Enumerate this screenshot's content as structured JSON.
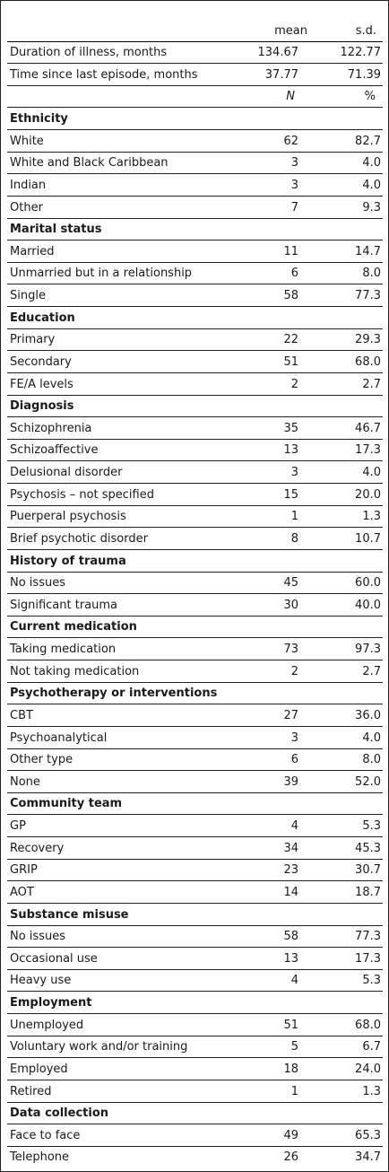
{
  "header": {
    "label": "",
    "col1": "mean",
    "col2": "s.d."
  },
  "continuous": [
    {
      "label": "Duration of illness, months",
      "v1": "134.67",
      "v2": "122.77"
    },
    {
      "label": "Time since last episode, months",
      "v1": "37.77",
      "v2": "71.39"
    }
  ],
  "subheader": {
    "label": "",
    "col1": "N",
    "col2": "%"
  },
  "sections": [
    {
      "title": "Ethnicity",
      "rows": [
        {
          "label": "White",
          "v1": "62",
          "v2": "82.7"
        },
        {
          "label": "White and Black Caribbean",
          "v1": "3",
          "v2": "4.0"
        },
        {
          "label": "Indian",
          "v1": "3",
          "v2": "4.0"
        },
        {
          "label": "Other",
          "v1": "7",
          "v2": "9.3"
        }
      ]
    },
    {
      "title": "Marital status",
      "rows": [
        {
          "label": "Married",
          "v1": "11",
          "v2": "14.7"
        },
        {
          "label": "Unmarried but in a relationship",
          "v1": "6",
          "v2": "8.0"
        },
        {
          "label": "Single",
          "v1": "58",
          "v2": "77.3"
        }
      ]
    },
    {
      "title": "Education",
      "rows": [
        {
          "label": "Primary",
          "v1": "22",
          "v2": "29.3"
        },
        {
          "label": "Secondary",
          "v1": "51",
          "v2": "68.0"
        },
        {
          "label": "FE/A levels",
          "v1": "2",
          "v2": "2.7"
        }
      ]
    },
    {
      "title": "Diagnosis",
      "rows": [
        {
          "label": "Schizophrenia",
          "v1": "35",
          "v2": "46.7"
        },
        {
          "label": "Schizoaffective",
          "v1": "13",
          "v2": "17.3"
        },
        {
          "label": "Delusional disorder",
          "v1": "3",
          "v2": "4.0"
        },
        {
          "label": "Psychosis – not specified",
          "v1": "15",
          "v2": "20.0"
        },
        {
          "label": "Puerperal psychosis",
          "v1": "1",
          "v2": "1.3"
        },
        {
          "label": "Brief psychotic disorder",
          "v1": "8",
          "v2": "10.7"
        }
      ]
    },
    {
      "title": "History of trauma",
      "rows": [
        {
          "label": "No issues",
          "v1": "45",
          "v2": "60.0"
        },
        {
          "label": "Significant trauma",
          "v1": "30",
          "v2": "40.0"
        }
      ]
    },
    {
      "title": "Current medication",
      "rows": [
        {
          "label": "Taking medication",
          "v1": "73",
          "v2": "97.3"
        },
        {
          "label": "Not taking medication",
          "v1": "2",
          "v2": "2.7"
        }
      ]
    },
    {
      "title": "Psychotherapy or interventions",
      "rows": [
        {
          "label": "CBT",
          "v1": "27",
          "v2": "36.0"
        },
        {
          "label": "Psychoanalytical",
          "v1": "3",
          "v2": "4.0"
        },
        {
          "label": "Other type",
          "v1": "6",
          "v2": "8.0"
        },
        {
          "label": "None",
          "v1": "39",
          "v2": "52.0"
        }
      ]
    },
    {
      "title": "Community team",
      "rows": [
        {
          "label": "GP",
          "v1": "4",
          "v2": "5.3"
        },
        {
          "label": "Recovery",
          "v1": "34",
          "v2": "45.3"
        },
        {
          "label": "GRIP",
          "v1": "23",
          "v2": "30.7"
        },
        {
          "label": "AOT",
          "v1": "14",
          "v2": "18.7"
        }
      ]
    },
    {
      "title": "Substance misuse",
      "rows": [
        {
          "label": "No issues",
          "v1": "58",
          "v2": "77.3"
        },
        {
          "label": "Occasional use",
          "v1": "13",
          "v2": "17.3"
        },
        {
          "label": "Heavy use",
          "v1": "4",
          "v2": "5.3"
        }
      ]
    },
    {
      "title": "Employment",
      "rows": [
        {
          "label": "Unemployed",
          "v1": "51",
          "v2": "68.0"
        },
        {
          "label": "Voluntary work and/or training",
          "v1": "5",
          "v2": "6.7"
        },
        {
          "label": "Employed",
          "v1": "18",
          "v2": "24.0"
        },
        {
          "label": "Retired",
          "v1": "1",
          "v2": "1.3"
        }
      ]
    },
    {
      "title": "Data collection",
      "rows": [
        {
          "label": "Face to face",
          "v1": "49",
          "v2": "65.3"
        },
        {
          "label": "Telephone",
          "v1": "26",
          "v2": "34.7"
        }
      ]
    }
  ]
}
